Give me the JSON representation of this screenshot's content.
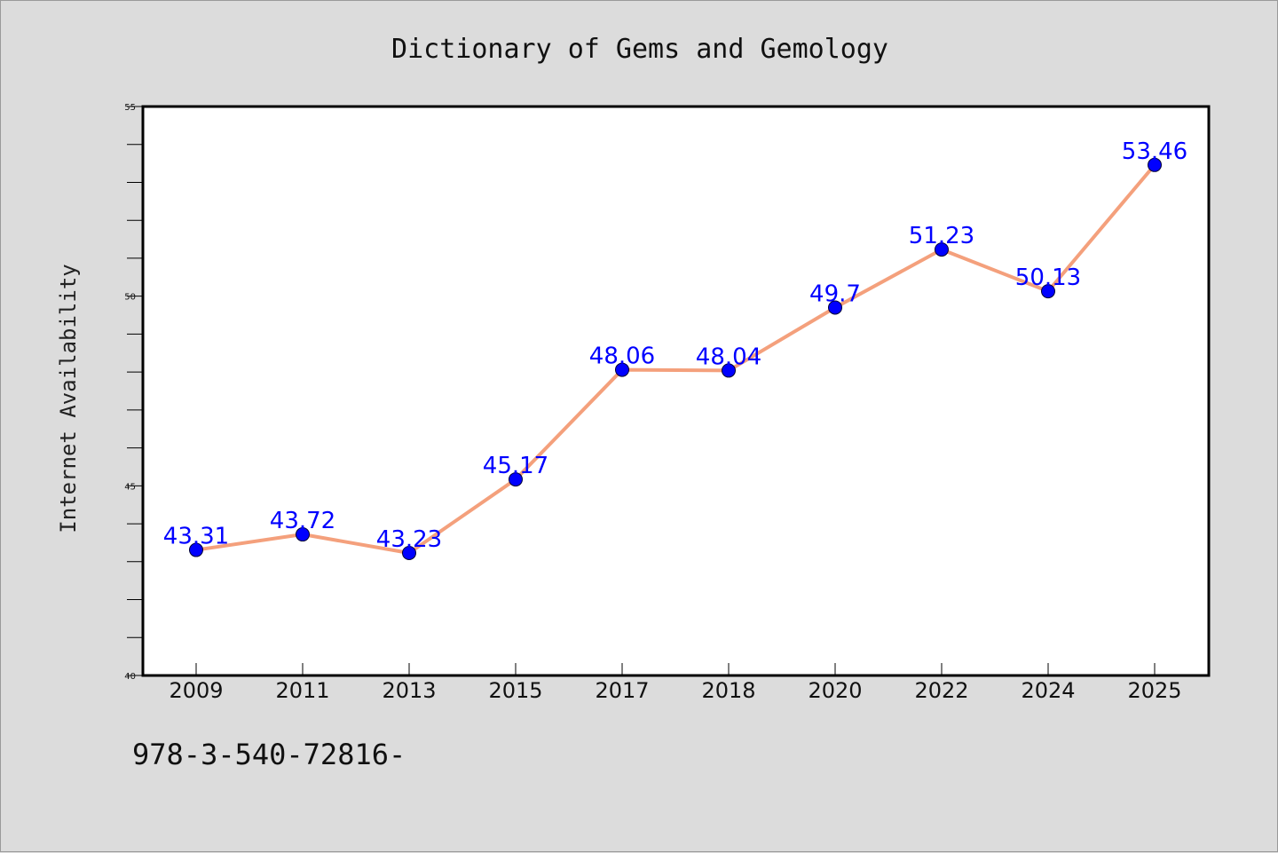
{
  "chart_data": {
    "type": "line",
    "title": "Dictionary of Gems and Gemology",
    "xlabel": "",
    "ylabel": "Internet Availability",
    "categories": [
      "2009",
      "2011",
      "2013",
      "2015",
      "2017",
      "2018",
      "2020",
      "2022",
      "2024",
      "2025"
    ],
    "series": [
      {
        "values": [
          43.31,
          43.72,
          43.23,
          45.17,
          48.06,
          48.04,
          49.7,
          51.23,
          50.13,
          53.46
        ],
        "labels": [
          "43.31",
          "43.72",
          "43.23",
          "45.17",
          "48.06",
          "48.04",
          "49.7",
          "51.23",
          "50.13",
          "53.46"
        ]
      }
    ],
    "ylim": [
      40,
      55
    ],
    "yticks": [
      40,
      45,
      50,
      55
    ],
    "grid": false,
    "colors": {
      "line": "#f4a07c",
      "marker": "#0000ff",
      "label": "#0000ff"
    }
  },
  "footer_text": "978-3-540-72816-"
}
